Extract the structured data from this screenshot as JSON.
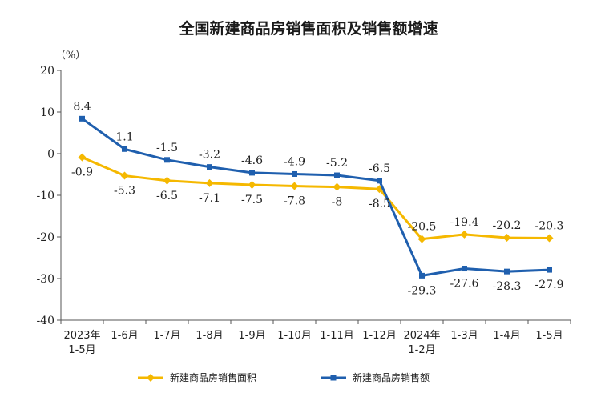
{
  "chart_data": {
    "type": "line",
    "title": "全国新建商品房销售面积及销售额增速",
    "unit_label": "（%）",
    "ylim": [
      -40,
      20
    ],
    "yticks": [
      20,
      10,
      0,
      -10,
      -20,
      -30,
      -40
    ],
    "categories": [
      "2023年\n1-5月",
      "1-6月",
      "1-7月",
      "1-8月",
      "1-9月",
      "1-10月",
      "1-11月",
      "1-12月",
      "2024年\n1-2月",
      "1-3月",
      "1-4月",
      "1-5月"
    ],
    "series": [
      {
        "name": "新建商品房销售面积",
        "color": "#f5b800",
        "marker": "diamond",
        "values": [
          -0.9,
          -5.3,
          -6.5,
          -7.1,
          -7.5,
          -7.8,
          -8.0,
          -8.5,
          -20.5,
          -19.4,
          -20.2,
          -20.3
        ]
      },
      {
        "name": "新建商品房销售额",
        "color": "#1f5fae",
        "marker": "square",
        "values": [
          8.4,
          1.1,
          -1.5,
          -3.2,
          -4.6,
          -4.9,
          -5.2,
          -6.5,
          -29.3,
          -27.6,
          -28.3,
          -27.9
        ]
      }
    ],
    "grid": false,
    "legend_position": "bottom"
  }
}
